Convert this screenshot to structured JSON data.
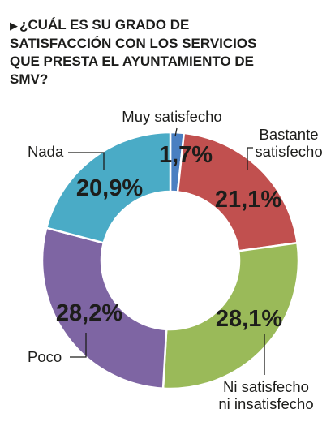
{
  "title_marker": "▶",
  "title": "¿Cuál es su grado de satisfacción con los servicios que presta el Ayuntamiento de SMV?",
  "chart_data": {
    "type": "pie",
    "variant": "donut",
    "title": "¿Cuál es su grado de satisfacción con los servicios que presta el Ayuntamiento de SMV?",
    "start": "top, clockwise",
    "slices": [
      {
        "label": [
          "Muy satisfecho"
        ],
        "value": 1.7,
        "text": "1,7%",
        "color": "#4a7fc1"
      },
      {
        "label": [
          "Bastante",
          "satisfecho"
        ],
        "value": 21.1,
        "text": "21,1%",
        "color": "#c1504f"
      },
      {
        "label": [
          "Ni satisfecho",
          "ni insatisfecho"
        ],
        "value": 28.1,
        "text": "28,1%",
        "color": "#9aba59"
      },
      {
        "label": [
          "Poco"
        ],
        "value": 28.2,
        "text": "28,2%",
        "color": "#7e65a3"
      },
      {
        "label": [
          "Nada"
        ],
        "value": 20.9,
        "text": "20,9%",
        "color": "#4aabc6"
      }
    ]
  }
}
